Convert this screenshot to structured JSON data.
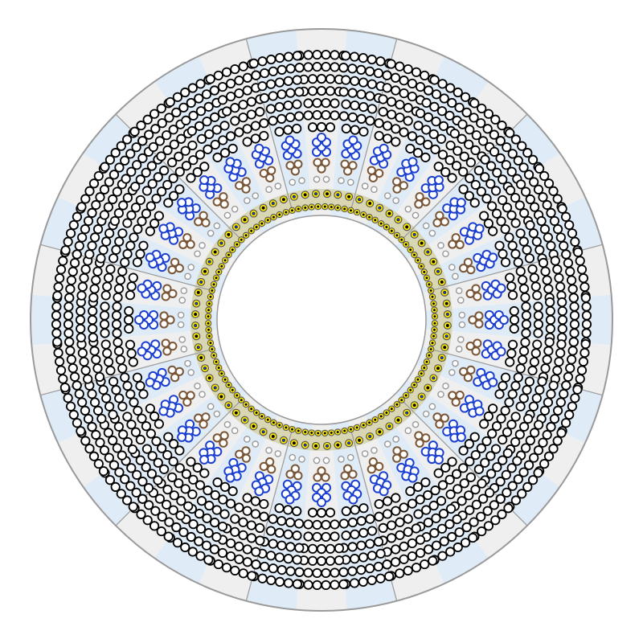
{
  "diagram": {
    "sector_count": 36,
    "sector_shading": [
      "light-gray",
      "light-blue"
    ],
    "rings": [
      {
        "name": "outer-cable-ring",
        "stroke": "#000000",
        "fill": "#ffffff"
      },
      {
        "name": "blue-cable-ring",
        "stroke": "#1a3fd0",
        "fill": "#ffffff"
      },
      {
        "name": "brown-cable-ring",
        "stroke": "#7a5535",
        "fill": "#ffffff"
      },
      {
        "name": "gray-cable-ring",
        "stroke": "#9a9a9a",
        "fill": "#ffffff"
      },
      {
        "name": "yellow-core-ring",
        "stroke": "#c8b400",
        "fill": "#ffec00"
      }
    ],
    "colors": {
      "outline": "#9a9a9a",
      "sector_gray": "#ededed",
      "sector_blue": "#dce9f5",
      "core_band": "#d9d6b4",
      "black_cable": "#000000",
      "blue_cable": "#1a3fd0",
      "brown_cable": "#7a5535",
      "gray_cable": "#9a9a9a",
      "yellow_cable": "#ffec00"
    }
  }
}
